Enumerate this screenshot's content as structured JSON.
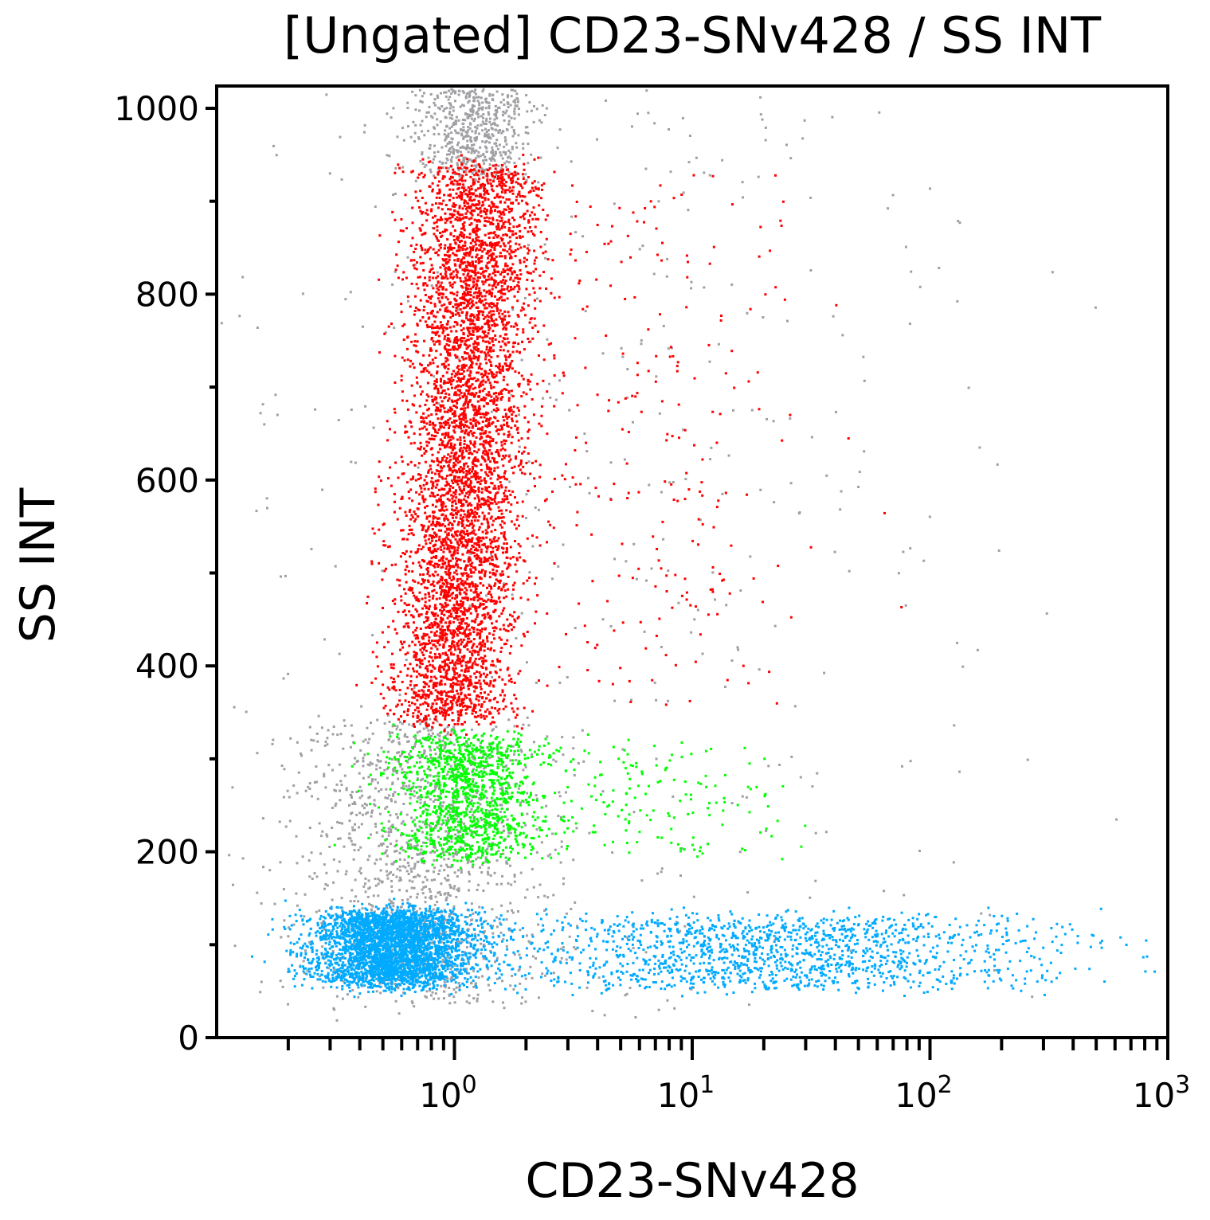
{
  "chart_data": {
    "type": "scatter",
    "title": "[Ungated] CD23-SNv428 / SS INT",
    "xlabel": "CD23-SNv428",
    "ylabel": "SS INT",
    "x_scale": "log",
    "xlim": [
      0.1,
      1000
    ],
    "ylim": [
      0,
      1024
    ],
    "x_ticks": [
      {
        "value": 1,
        "base": "10",
        "exp": "0"
      },
      {
        "value": 10,
        "base": "10",
        "exp": "1"
      },
      {
        "value": 100,
        "base": "10",
        "exp": "2"
      },
      {
        "value": 1000,
        "base": "10",
        "exp": "3"
      }
    ],
    "y_ticks": [
      "0",
      "200",
      "400",
      "600",
      "800",
      "1000"
    ],
    "grid": false,
    "populations": [
      {
        "color": "#a0a0a4",
        "x_center": 1.2,
        "x_spread_decades": 0.12,
        "y_range": [
          930,
          1024
        ],
        "count": 600
      },
      {
        "color": "#a0a0a4",
        "x_center": 0.7,
        "x_spread_decades": 0.25,
        "y_range": [
          40,
          340
        ],
        "count": 1400
      },
      {
        "color": "#a0a0a4",
        "x_center": 3,
        "x_spread_decades": 0.9,
        "y_range": [
          20,
          1024
        ],
        "count": 500
      },
      {
        "color": "#ff0000",
        "x_center": 1.1,
        "x_spread_decades": 0.13,
        "y_range": [
          340,
          940
        ],
        "count": 5200
      },
      {
        "color": "#ff0000",
        "x_center": 6,
        "x_spread_decades": 0.35,
        "y_range": [
          360,
          930
        ],
        "count": 260
      },
      {
        "color": "#00ff00",
        "x_center": 1.1,
        "x_spread_decades": 0.15,
        "y_range": [
          195,
          325
        ],
        "count": 1200
      },
      {
        "color": "#00ff00",
        "x_center": 5,
        "x_spread_decades": 0.35,
        "y_range": [
          200,
          320
        ],
        "count": 200
      },
      {
        "color": "#00aaff",
        "x_center": 0.55,
        "x_spread_decades": 0.17,
        "y_range": [
          60,
          135
        ],
        "count": 3200
      },
      {
        "color": "#00aaff",
        "x_center": 20,
        "x_spread_decades": 0.6,
        "y_range": [
          55,
          130
        ],
        "count": 1500
      }
    ]
  }
}
